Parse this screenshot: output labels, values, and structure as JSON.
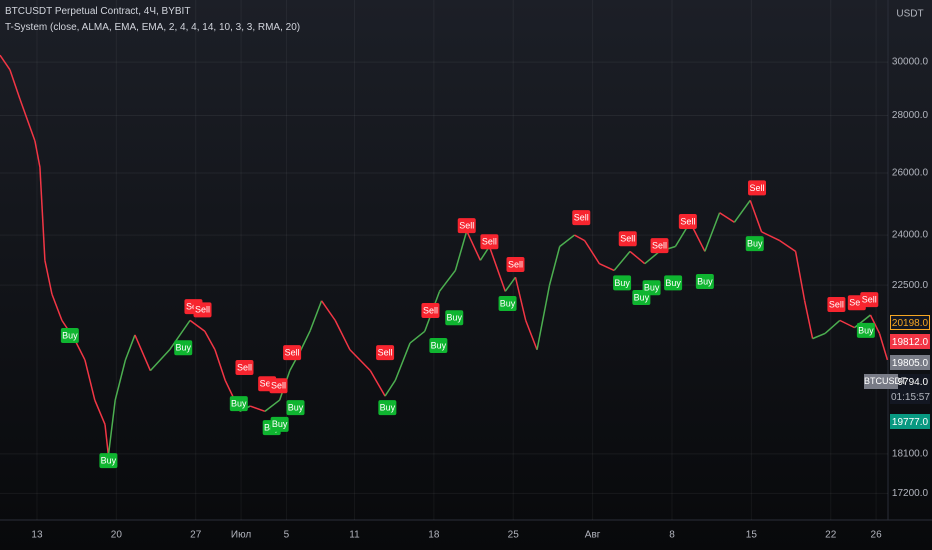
{
  "chart_data": {
    "type": "line",
    "title": "BTCUSDT Perpetual Contract, 4Ч, BYBIT",
    "subtitle": "T-System (close, ALMA, EMA, EMA, 2, 4, 4, 14, 10, 3, 3, RMA, 20)",
    "y_axis_label": "USDT",
    "log_scale": true,
    "grid": true,
    "up_color": "#4caf50",
    "down_color": "#f23645",
    "xlim": [
      -3.26,
      75.05
    ],
    "ylim": [
      16620,
      32500
    ],
    "xticks": [
      {
        "value": 0,
        "label": "13"
      },
      {
        "value": 7,
        "label": "20"
      },
      {
        "value": 14,
        "label": "27"
      },
      {
        "value": 18,
        "label": "Июл"
      },
      {
        "value": 22,
        "label": "5"
      },
      {
        "value": 28,
        "label": "11"
      },
      {
        "value": 35,
        "label": "18"
      },
      {
        "value": 42,
        "label": "25"
      },
      {
        "value": 49,
        "label": "Авг"
      },
      {
        "value": 56,
        "label": "8"
      },
      {
        "value": 63,
        "label": "15"
      },
      {
        "value": 70,
        "label": "22"
      },
      {
        "value": 74,
        "label": "26"
      }
    ],
    "yticks": [
      {
        "value": 30000,
        "label": "30000.0"
      },
      {
        "value": 28000,
        "label": "28000.0"
      },
      {
        "value": 26000,
        "label": "26000.0"
      },
      {
        "value": 24000,
        "label": "24000.0"
      },
      {
        "value": 22500,
        "label": "22500.0"
      },
      {
        "value": 18100,
        "label": "18100.0"
      },
      {
        "value": 17200,
        "label": "17200.0"
      }
    ],
    "x": [
      -3.26,
      -2.38,
      -1.5,
      -0.18,
      0.26,
      0.7,
      1.32,
      2.2,
      3.35,
      4.23,
      5.1,
      6.0,
      6.3,
      6.9,
      7.8,
      8.64,
      10,
      11.7,
      13.5,
      14.8,
      15.7,
      16.6,
      17.9,
      18.8,
      20.1,
      21.4,
      22.3,
      23.2,
      24.1,
      25.1,
      26.3,
      27.6,
      29.4,
      30.7,
      31.6,
      32.9,
      34.2,
      35.5,
      36.9,
      37.9,
      39.1,
      39.9,
      41.3,
      42.2,
      43.1,
      44.1,
      45.2,
      46.1,
      47.4,
      48.3,
      49.6,
      50.9,
      52.3,
      53.6,
      54.9,
      56.3,
      57.6,
      58.9,
      60.2,
      61.5,
      62.9,
      63.9,
      65.5,
      66.9,
      67.7,
      68.4,
      69.5,
      70.8,
      72.1,
      73.5,
      74.3,
      75
    ],
    "values": [
      30270,
      29700,
      28600,
      27100,
      26200,
      23230,
      22240,
      21500,
      20960,
      20430,
      19400,
      18800,
      18060,
      19400,
      20430,
      21100,
      20150,
      20700,
      21500,
      21200,
      20700,
      19900,
      19120,
      19250,
      19120,
      19400,
      20150,
      20650,
      21220,
      22050,
      21500,
      20700,
      20150,
      19500,
      19900,
      20880,
      21200,
      22320,
      22930,
      24130,
      23230,
      23650,
      22320,
      22730,
      21500,
      20700,
      22500,
      23650,
      24000,
      23830,
      23130,
      22930,
      23500,
      23130,
      23500,
      23650,
      24400,
      23500,
      24700,
      24400,
      25100,
      24100,
      23830,
      23500,
      22050,
      21000,
      21140,
      21500,
      21300,
      21650,
      21140,
      20430
    ],
    "signals": [
      {
        "label": "Sell",
        "color": "#f7252f",
        "x": 13.8,
        "y": 21870
      },
      {
        "label": "Sell",
        "color": "#f7252f",
        "x": 14.6,
        "y": 21780
      },
      {
        "label": "Sell",
        "color": "#f7252f",
        "x": 18.3,
        "y": 20220
      },
      {
        "label": "Sell",
        "color": "#f7252f",
        "x": 22.5,
        "y": 20610
      },
      {
        "label": "Sell",
        "color": "#f7252f",
        "x": 20.3,
        "y": 19800
      },
      {
        "label": "Sell",
        "color": "#f7252f",
        "x": 21.3,
        "y": 19750
      },
      {
        "label": "Sell",
        "color": "#f7252f",
        "x": 30.7,
        "y": 20610
      },
      {
        "label": "Sell",
        "color": "#f7252f",
        "x": 34.7,
        "y": 21760
      },
      {
        "label": "Sell",
        "color": "#f7252f",
        "x": 37.9,
        "y": 24280
      },
      {
        "label": "Sell",
        "color": "#f7252f",
        "x": 39.9,
        "y": 23780
      },
      {
        "label": "Sell",
        "color": "#f7252f",
        "x": 42.2,
        "y": 23090
      },
      {
        "label": "Sell",
        "color": "#f7252f",
        "x": 48.0,
        "y": 24530
      },
      {
        "label": "Sell",
        "color": "#f7252f",
        "x": 52.1,
        "y": 23870
      },
      {
        "label": "Sell",
        "color": "#f7252f",
        "x": 54.9,
        "y": 23660
      },
      {
        "label": "Sell",
        "color": "#f7252f",
        "x": 57.4,
        "y": 24410
      },
      {
        "label": "Sell",
        "color": "#f7252f",
        "x": 63.5,
        "y": 25490
      },
      {
        "label": "Sell",
        "color": "#f7252f",
        "x": 70.5,
        "y": 21930
      },
      {
        "label": "Sell",
        "color": "#f7252f",
        "x": 72.3,
        "y": 21980
      },
      {
        "label": "Sell",
        "color": "#f7252f",
        "x": 73.4,
        "y": 22070
      },
      {
        "label": "Buy",
        "color": "#0fb530",
        "x": 2.9,
        "y": 21070
      },
      {
        "label": "Buy",
        "color": "#0fb530",
        "x": 6.3,
        "y": 17930
      },
      {
        "label": "Buy",
        "color": "#0fb530",
        "x": 12.9,
        "y": 20740
      },
      {
        "label": "Buy",
        "color": "#0fb530",
        "x": 17.8,
        "y": 19300
      },
      {
        "label": "Buy",
        "color": "#0fb530",
        "x": 20.7,
        "y": 18710
      },
      {
        "label": "Buy",
        "color": "#0fb530",
        "x": 21.4,
        "y": 18790
      },
      {
        "label": "Buy",
        "color": "#0fb530",
        "x": 22.8,
        "y": 19200
      },
      {
        "label": "Buy",
        "color": "#0fb530",
        "x": 30.9,
        "y": 19200
      },
      {
        "label": "Buy",
        "color": "#0fb530",
        "x": 35.4,
        "y": 20800
      },
      {
        "label": "Buy",
        "color": "#0fb530",
        "x": 36.8,
        "y": 21560
      },
      {
        "label": "Buy",
        "color": "#0fb530",
        "x": 41.5,
        "y": 21960
      },
      {
        "label": "Buy",
        "color": "#0fb530",
        "x": 51.6,
        "y": 22550
      },
      {
        "label": "Buy",
        "color": "#0fb530",
        "x": 53.3,
        "y": 22130
      },
      {
        "label": "Buy",
        "color": "#0fb530",
        "x": 54.2,
        "y": 22410
      },
      {
        "label": "Buy",
        "color": "#0fb530",
        "x": 56.1,
        "y": 22550
      },
      {
        "label": "Buy",
        "color": "#0fb530",
        "x": 58.9,
        "y": 22590
      },
      {
        "label": "Buy",
        "color": "#0fb530",
        "x": 63.3,
        "y": 23720
      },
      {
        "label": "Buy",
        "color": "#0fb530",
        "x": 73.1,
        "y": 21210
      }
    ],
    "symbol_tag": "BTCUSDT",
    "price_tags": [
      {
        "label": "20198.0",
        "color": "#131722",
        "border": "#f5a623",
        "text_color": "#f5a623"
      },
      {
        "label": "19812.0",
        "color": "#f23645",
        "border": "#f23645",
        "text_color": "#ffffff"
      },
      {
        "label": "19805.0",
        "color": "#787b86",
        "border": "#787b86",
        "text_color": "#ffffff"
      },
      {
        "label": "19794.0",
        "color": "#131722",
        "border": "#131722",
        "text_color": "#ffffff"
      },
      {
        "label": "01:15:57",
        "color": "#131722",
        "border": "#131722",
        "text_color": "#b2b5be"
      },
      {
        "label": "19777.0",
        "color": "#089981",
        "border": "#089981",
        "text_color": "#ffffff"
      }
    ]
  }
}
